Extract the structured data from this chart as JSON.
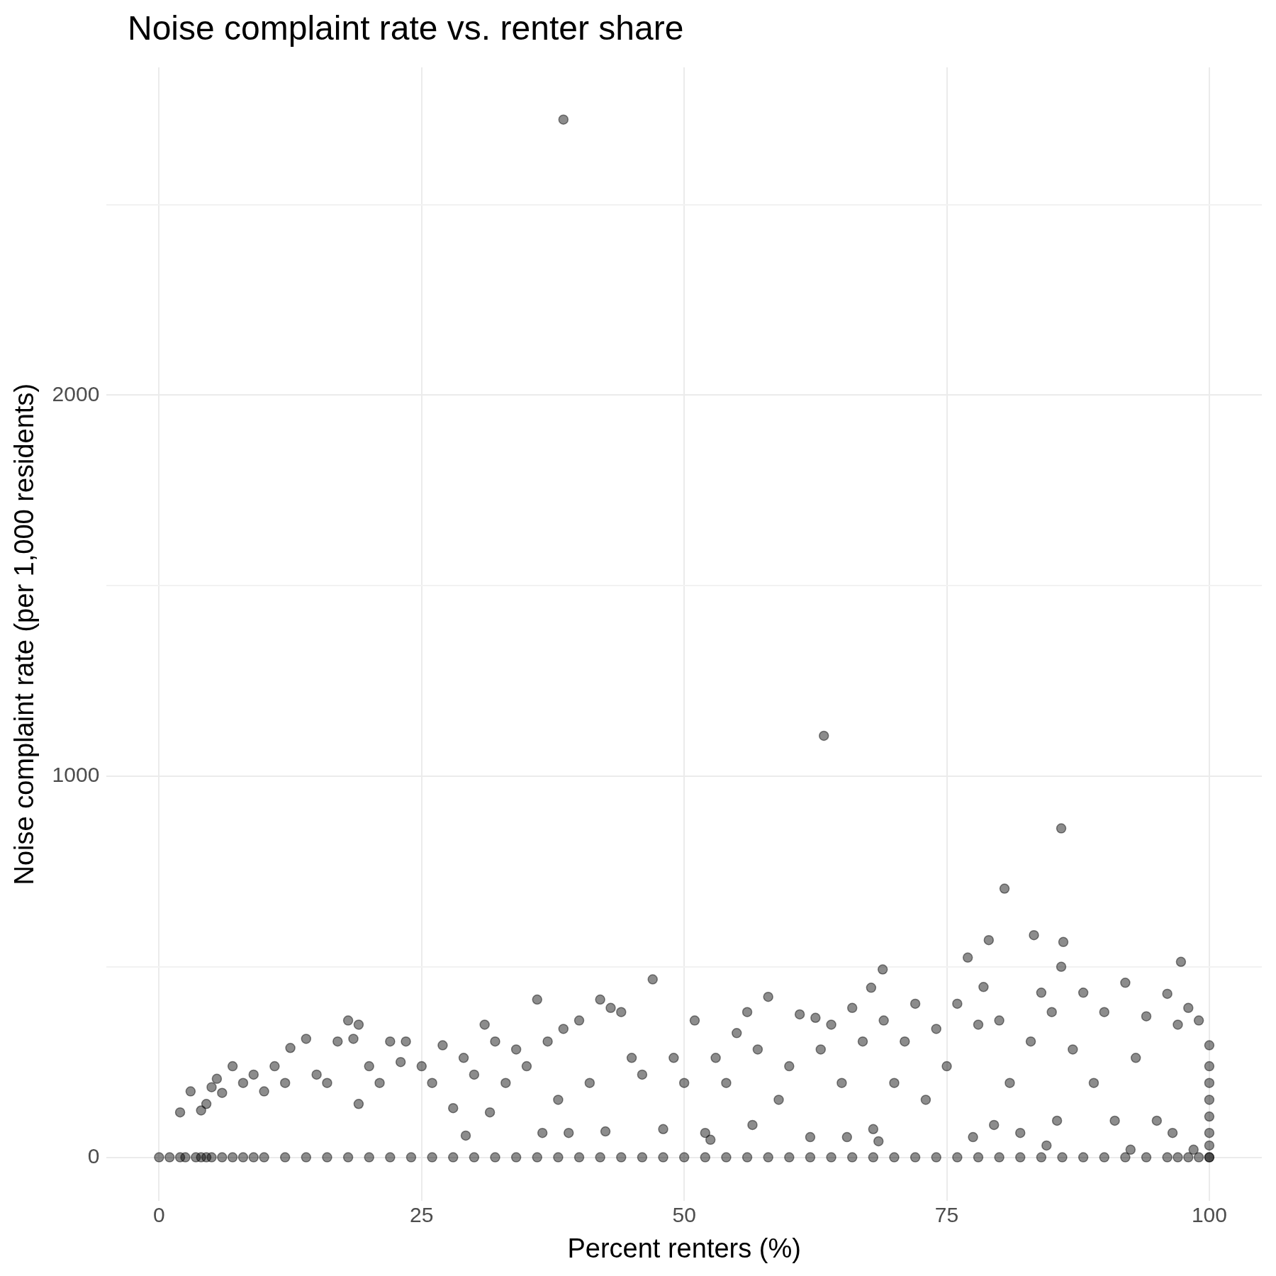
{
  "chart_data": {
    "type": "scatter",
    "title": "Noise complaint rate vs. renter share",
    "xlabel": "Percent renters (%)",
    "ylabel": "Noise complaint rate (per 1,000 residents)",
    "xlim": [
      -5,
      105
    ],
    "ylim": [
      -115,
      2860
    ],
    "xticks": [
      0,
      25,
      50,
      75,
      100
    ],
    "yticks": [
      0,
      {
        "value": 500,
        "label": null
      },
      1000,
      {
        "value": 1500,
        "label": null
      },
      2000,
      {
        "value": 2500,
        "label": null
      }
    ],
    "grid": true,
    "legend": false,
    "marker": "circle",
    "series": [
      {
        "color": "#000000",
        "x": [
          0,
          1,
          2,
          2.5,
          3.5,
          4,
          4.5,
          5,
          6,
          7,
          8,
          9,
          10,
          12,
          14,
          16,
          18,
          20,
          22,
          24,
          26,
          28,
          30,
          32,
          34,
          36,
          38,
          40,
          42,
          44,
          46,
          48,
          50,
          52,
          54,
          56,
          58,
          60,
          62,
          64,
          66,
          68,
          70,
          72,
          74,
          76,
          78,
          80,
          82,
          84,
          86,
          88,
          90,
          92,
          94,
          96,
          97,
          98,
          99,
          100,
          100
        ],
        "values": [
          0,
          0,
          0,
          0,
          0,
          0,
          0,
          0,
          0,
          0,
          0,
          0,
          0,
          0,
          0,
          0,
          0,
          0,
          0,
          0,
          0,
          0,
          0,
          0,
          0,
          0,
          0,
          0,
          0,
          0,
          0,
          0,
          0,
          0,
          0,
          0,
          0,
          0,
          0,
          0,
          0,
          0,
          0,
          0,
          0,
          0,
          0,
          0,
          0,
          0,
          0,
          0,
          0,
          0,
          0,
          0,
          0,
          0,
          0,
          0,
          0
        ]
      },
      {
        "color": "#000000",
        "x": [
          2,
          3,
          4,
          4.5,
          5,
          5.5,
          6,
          7,
          8,
          9,
          10,
          11,
          12,
          12.5,
          14,
          15,
          16,
          17,
          18,
          18.5,
          19,
          19,
          20,
          21,
          22,
          23,
          23.5,
          25,
          26,
          27,
          28,
          29,
          29.2,
          30,
          31,
          31.5,
          32,
          33,
          34,
          35,
          36,
          36.5,
          37,
          38,
          38.5,
          38.5,
          39,
          40,
          41,
          42,
          42.5,
          43,
          44,
          45,
          46,
          47,
          48,
          49,
          50,
          51,
          52,
          52.5,
          53,
          54,
          55,
          56,
          56.5,
          57,
          58,
          59,
          60,
          61,
          62,
          62.5,
          63,
          63.3,
          64,
          65,
          65.5,
          66,
          67,
          67.8,
          68,
          68.5,
          68.9,
          69,
          70,
          71,
          72,
          73,
          74,
          75,
          76,
          77,
          77.5,
          78,
          78.5,
          79,
          79.5,
          80,
          80.5,
          81,
          82,
          83,
          83.3,
          84,
          84.5,
          85,
          85.5,
          85.9,
          85.9,
          86.1,
          87,
          88,
          89,
          90,
          91,
          92,
          92.5,
          93,
          94,
          95,
          96,
          96.5,
          97,
          97.3,
          98,
          98.5,
          99,
          100,
          100,
          100,
          100,
          100,
          100,
          100
        ],
        "values": [
          118,
          173,
          123,
          140,
          184,
          206,
          169,
          239,
          195,
          217,
          173,
          239,
          195,
          287,
          311,
          217,
          195,
          304,
          359,
          311,
          140,
          348,
          239,
          195,
          304,
          250,
          304,
          239,
          195,
          294,
          129,
          261,
          57,
          217,
          348,
          118,
          304,
          195,
          283,
          239,
          414,
          64,
          304,
          151,
          337,
          2723,
          64,
          359,
          195,
          414,
          68,
          392,
          381,
          261,
          217,
          467,
          74,
          261,
          195,
          359,
          64,
          46,
          261,
          195,
          326,
          381,
          85,
          283,
          421,
          151,
          239,
          375,
          53,
          366,
          283,
          1106,
          348,
          195,
          53,
          392,
          304,
          445,
          74,
          42,
          493,
          359,
          195,
          304,
          403,
          151,
          337,
          239,
          403,
          524,
          53,
          348,
          447,
          570,
          85,
          359,
          705,
          195,
          64,
          304,
          583,
          432,
          31,
          381,
          96,
          500,
          863,
          565,
          283,
          432,
          195,
          381,
          96,
          458,
          20,
          261,
          370,
          96,
          429,
          64,
          348,
          513,
          392,
          20,
          359,
          294,
          239,
          195,
          151,
          107,
          64,
          31
        ]
      }
    ]
  }
}
